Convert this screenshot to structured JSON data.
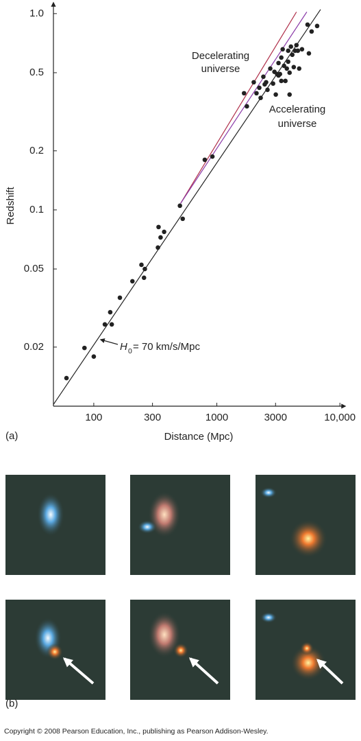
{
  "chart_data": {
    "type": "scatter",
    "xlabel": "Distance (Mpc)",
    "ylabel": "Redshift",
    "xscale": "log",
    "yscale": "log",
    "xlim": [
      47,
      10500
    ],
    "ylim": [
      0.01,
      1.1
    ],
    "xticks": [
      100,
      300,
      1000,
      3000,
      {
        "value": 10000,
        "label": "10,000"
      }
    ],
    "yticks": [
      {
        "value": 1,
        "label": "1.0"
      },
      0.5,
      0.2,
      0.1,
      0.05,
      0.02
    ],
    "series": [
      {
        "color": "#222222",
        "x": [
          60,
          84,
          100,
          123,
          136,
          140,
          163,
          206,
          244,
          256,
          260,
          332,
          336,
          349,
          373,
          501,
          528,
          798,
          920,
          1664,
          1754,
          1995,
          2100,
          2213,
          2270,
          2388,
          2449,
          2515,
          2580,
          2718,
          2864,
          2938,
          3013,
          3090,
          3171,
          3171,
          3258,
          3342,
          3342,
          3428,
          3516,
          3608,
          3704,
          3800,
          3800,
          3900,
          3900,
          4000,
          4104,
          4217,
          4325,
          4436,
          4550,
          4667,
          4920,
          5458,
          5598,
          5890,
          6531
        ],
        "values": [
          0.0139,
          0.0198,
          0.0179,
          0.0261,
          0.0301,
          0.0261,
          0.0357,
          0.0433,
          0.0525,
          0.0451,
          0.05,
          0.0643,
          0.0818,
          0.0724,
          0.0773,
          0.105,
          0.0901,
          0.18,
          0.187,
          0.393,
          0.337,
          0.447,
          0.393,
          0.419,
          0.372,
          0.477,
          0.436,
          0.447,
          0.409,
          0.525,
          0.44,
          0.505,
          0.387,
          0.492,
          0.56,
          0.484,
          0.492,
          0.597,
          0.454,
          0.658,
          0.542,
          0.454,
          0.525,
          0.569,
          0.647,
          0.5,
          0.387,
          0.679,
          0.617,
          0.534,
          0.647,
          0.691,
          0.647,
          0.525,
          0.658,
          0.879,
          0.627,
          0.811,
          0.865
        ]
      }
    ],
    "lines": [
      {
        "color": "#222222",
        "x": [
          47,
          6966
        ],
        "y": [
          0.0102,
          1.05
        ]
      },
      {
        "color": "#b0304a",
        "x": [
          508,
          4436
        ],
        "y": [
          0.108,
          1.02
        ]
      },
      {
        "color": "#8a3aa8",
        "x": [
          508,
          5383
        ],
        "y": [
          0.108,
          1.02
        ]
      }
    ],
    "annotations": [
      {
        "lines": [
          "Decelerating",
          "universe"
        ]
      },
      {
        "lines": [
          "Accelerating",
          "universe"
        ]
      },
      {
        "parts": [
          "H",
          "0",
          " = 70 km/s/Mpc"
        ]
      }
    ]
  },
  "panel_labels": [
    "(a)",
    "(b)"
  ],
  "copyright": "Copyright © 2008 Pearson Education, Inc., publishing as Pearson Addison-Wesley."
}
